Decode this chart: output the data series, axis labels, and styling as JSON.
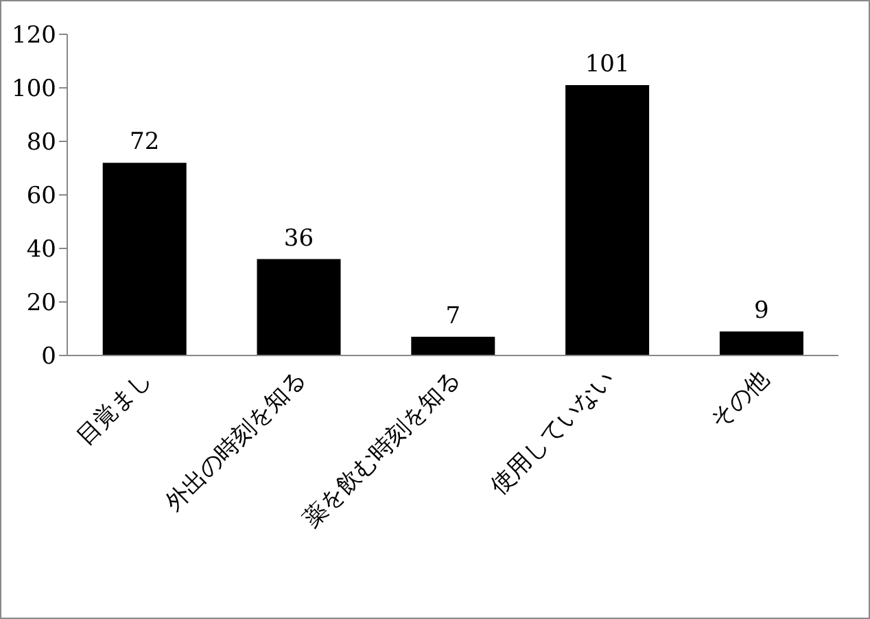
{
  "chart_data": {
    "type": "bar",
    "categories": [
      "目覚まし",
      "外出の時刻を知る",
      "薬を飲む時刻を知る",
      "使用していない",
      "その他"
    ],
    "values": [
      72,
      36,
      7,
      101,
      9
    ],
    "color": "#000000",
    "ylim": [
      0,
      120
    ],
    "yticks": [
      0,
      20,
      40,
      60,
      80,
      100,
      120
    ],
    "data_labels": true,
    "grid": false
  }
}
